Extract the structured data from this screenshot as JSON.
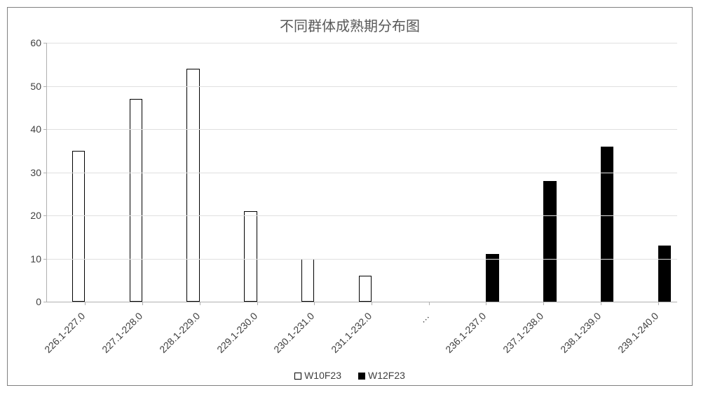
{
  "chart": {
    "type": "bar-grouped",
    "title": "不同群体成熟期分布图",
    "title_fontsize": 20,
    "title_color": "#595959",
    "background_color": "#ffffff",
    "border_color": "#808080",
    "grid_color": "#e0e0e0",
    "axis_color": "#b0b0b0",
    "label_color": "#404040",
    "label_fontsize": 14,
    "ylim": [
      0,
      60
    ],
    "ytick_step": 10,
    "yticks": [
      0,
      10,
      20,
      30,
      40,
      50,
      60
    ],
    "categories": [
      "226.1-227.0",
      "227.1-228.0",
      "228.1-229.0",
      "229.1-230.0",
      "230.1-231.0",
      "231.1-232.0",
      "…",
      "236.1-237.0",
      "237.1-238.0",
      "238.1-239.0",
      "239.1-240.0"
    ],
    "series": [
      {
        "name": "W10F23",
        "fill": "#ffffff",
        "border": "#000000",
        "values": [
          35,
          47,
          54,
          21,
          10,
          6,
          null,
          null,
          null,
          null,
          null
        ]
      },
      {
        "name": "W12F23",
        "fill": "#000000",
        "border": "#000000",
        "values": [
          null,
          null,
          null,
          null,
          null,
          null,
          null,
          11,
          28,
          36,
          13
        ]
      }
    ],
    "bar_border_width": 1,
    "group_width_ratio": 0.45,
    "legend_position": "bottom"
  }
}
